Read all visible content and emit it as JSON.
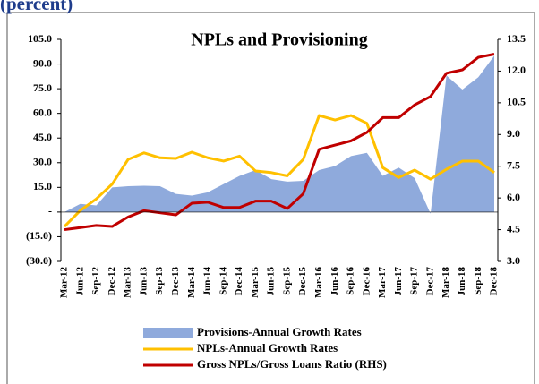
{
  "header": {
    "title": "(percent)"
  },
  "chart_data": {
    "type": "line",
    "title": "NPLs and Provisioning",
    "categories": [
      "Mar-12",
      "Jun-12",
      "Sep-12",
      "Dec-12",
      "Mar-13",
      "Jun-13",
      "Sep-13",
      "Dec-13",
      "Mar-14",
      "Jun-14",
      "Sep-14",
      "Dec-14",
      "Mar-15",
      "Jun-15",
      "Sep-15",
      "Dec-15",
      "Mar-16",
      "Jun-16",
      "Sep-16",
      "Dec-16",
      "Mar-17",
      "Jun-17",
      "Sep-17",
      "Dec-17",
      "Mar-18",
      "Jun-18",
      "Sep-18",
      "Dec-18"
    ],
    "series": [
      {
        "name": "Provisions-Annual Growth Rates",
        "type": "area",
        "color": "#8faadc",
        "axis": "y",
        "values": [
          0,
          5,
          4,
          15,
          15.7,
          16,
          15.7,
          11,
          10,
          12,
          17,
          22,
          25.5,
          20,
          18.5,
          19,
          25.5,
          28,
          34,
          36,
          22,
          27,
          20.6,
          -1,
          83,
          74.5,
          82,
          95
        ]
      },
      {
        "name": "NPLs-Annual Growth Rates",
        "type": "line",
        "color": "#ffc000",
        "axis": "y",
        "values": [
          -8.8,
          1,
          8,
          17,
          32,
          36,
          33,
          32.6,
          36.4,
          33,
          31,
          34,
          25,
          24,
          22,
          32,
          58.7,
          56,
          58.7,
          54,
          27,
          21,
          25.5,
          20,
          26,
          31,
          31,
          24
        ]
      },
      {
        "name": "Gross NPLs/Gross Loans Ratio (RHS)",
        "type": "line",
        "color": "#c00000",
        "axis": "y2",
        "values": [
          4.5,
          4.6,
          4.7,
          4.65,
          5.1,
          5.4,
          5.3,
          5.2,
          5.75,
          5.8,
          5.55,
          5.55,
          5.85,
          5.85,
          5.5,
          6.2,
          8.3,
          8.5,
          8.7,
          9.1,
          9.8,
          9.8,
          10.4,
          10.8,
          11.9,
          12.06,
          12.65,
          12.8
        ]
      }
    ],
    "ylim": [
      -30,
      105
    ],
    "yticks": [
      {
        "value": -30,
        "label": "(30.0)"
      },
      {
        "value": -15,
        "label": "(15.0)"
      },
      {
        "value": 0,
        "label": "-"
      },
      {
        "value": 15,
        "label": "15.0"
      },
      {
        "value": 30,
        "label": "30.0"
      },
      {
        "value": 45,
        "label": "45.0"
      },
      {
        "value": 60,
        "label": "60.0"
      },
      {
        "value": 75,
        "label": "75.0"
      },
      {
        "value": 90,
        "label": "90.0"
      },
      {
        "value": 105,
        "label": "105.0"
      }
    ],
    "y2lim": [
      3,
      13.5
    ],
    "y2ticks": [
      {
        "value": 3,
        "label": "3.0"
      },
      4.5,
      {
        "value": 6,
        "label": "6.0"
      },
      7.5,
      {
        "value": 9,
        "label": "9.0"
      },
      10.5,
      {
        "value": 12,
        "label": "12.0"
      },
      13.5
    ]
  }
}
